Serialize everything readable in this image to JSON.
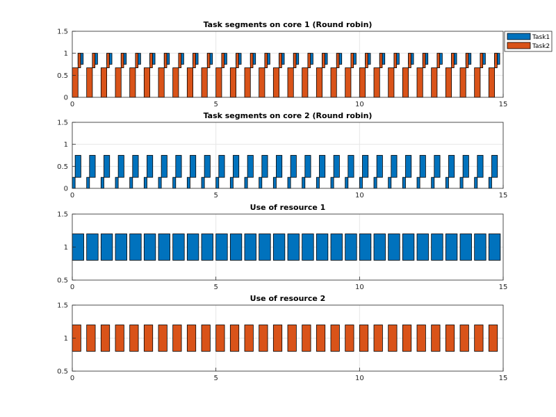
{
  "colors": {
    "task1": "#0072BD",
    "task2": "#D95319",
    "grid": "#e6e6e6",
    "axis": "#262626"
  },
  "legend": {
    "placement": "top-right",
    "entries": [
      {
        "label": "Task1",
        "color": "#0072BD"
      },
      {
        "label": "Task2",
        "color": "#D95319"
      }
    ]
  },
  "chart_data": [
    {
      "type": "bar",
      "title": "Task segments on core 1 (Round robin)",
      "xlim": [
        0,
        15
      ],
      "ylim": [
        0,
        1.5
      ],
      "xticks": [
        0,
        5,
        10,
        15
      ],
      "yticks": [
        0,
        0.5,
        1,
        1.5
      ],
      "xticklabels": [
        "0",
        "5",
        "10",
        "15"
      ],
      "yticklabels": [
        "0",
        "0.5",
        "1",
        "1.5"
      ],
      "grid": true,
      "series": [
        {
          "name": "Task1",
          "color": "#0072BD",
          "period": 0.5,
          "count": 30,
          "start": 0.2,
          "width": 0.09,
          "y0": 0.75,
          "y1": 1.0
        },
        {
          "name": "Task1",
          "color": "#0072BD",
          "period": 0.5,
          "count": 30,
          "start": 0.29,
          "width": 0.09,
          "y0": 0.75,
          "y1": 1.0
        },
        {
          "name": "Task2",
          "color": "#D95319",
          "period": 0.5,
          "count": 30,
          "start": 0.0,
          "width": 0.2,
          "y0": 0.0,
          "y1": 0.67
        },
        {
          "name": "Task2",
          "color": "#D95319",
          "period": 0.5,
          "count": 30,
          "start": 0.2,
          "width": 0.09,
          "y0": 0.67,
          "y1": 1.0
        }
      ]
    },
    {
      "type": "bar",
      "title": "Task segments on core 2 (Round robin)",
      "xlim": [
        0,
        15
      ],
      "ylim": [
        0,
        1.5
      ],
      "xticks": [
        0,
        5,
        10,
        15
      ],
      "yticks": [
        0,
        0.5,
        1,
        1.5
      ],
      "xticklabels": [
        "0",
        "5",
        "10",
        "15"
      ],
      "yticklabels": [
        "0",
        "0.5",
        "1",
        "1.5"
      ],
      "grid": true,
      "series": [
        {
          "name": "Task1",
          "color": "#0072BD",
          "period": 0.5,
          "count": 30,
          "start": 0.0,
          "width": 0.1,
          "y0": 0.0,
          "y1": 0.25
        },
        {
          "name": "Task1",
          "color": "#0072BD",
          "period": 0.5,
          "count": 30,
          "start": 0.1,
          "width": 0.2,
          "y0": 0.25,
          "y1": 0.75
        }
      ]
    },
    {
      "type": "bar",
      "title": "Use of resource 1",
      "xlim": [
        0,
        15
      ],
      "ylim": [
        0.5,
        1.5
      ],
      "xticks": [
        0,
        5,
        10,
        15
      ],
      "yticks": [
        0.5,
        1,
        1.5
      ],
      "xticklabels": [
        "0",
        "5",
        "10",
        "15"
      ],
      "yticklabels": [
        "0.5",
        "1",
        "1.5"
      ],
      "grid": true,
      "series": [
        {
          "name": "Task1",
          "color": "#0072BD",
          "period": 0.5,
          "count": 30,
          "start": 0.0,
          "width": 0.4,
          "y0": 0.8,
          "y1": 1.2
        }
      ]
    },
    {
      "type": "bar",
      "title": "Use of resource 2",
      "xlim": [
        0,
        15
      ],
      "ylim": [
        0.5,
        1.5
      ],
      "xticks": [
        0,
        5,
        10,
        15
      ],
      "yticks": [
        0.5,
        1,
        1.5
      ],
      "xticklabels": [
        "0",
        "5",
        "10",
        "15"
      ],
      "yticklabels": [
        "0.5",
        "1",
        "1.5"
      ],
      "grid": true,
      "series": [
        {
          "name": "Task2",
          "color": "#D95319",
          "period": 0.5,
          "count": 30,
          "start": 0.0,
          "width": 0.3,
          "y0": 0.8,
          "y1": 1.2
        }
      ]
    }
  ]
}
